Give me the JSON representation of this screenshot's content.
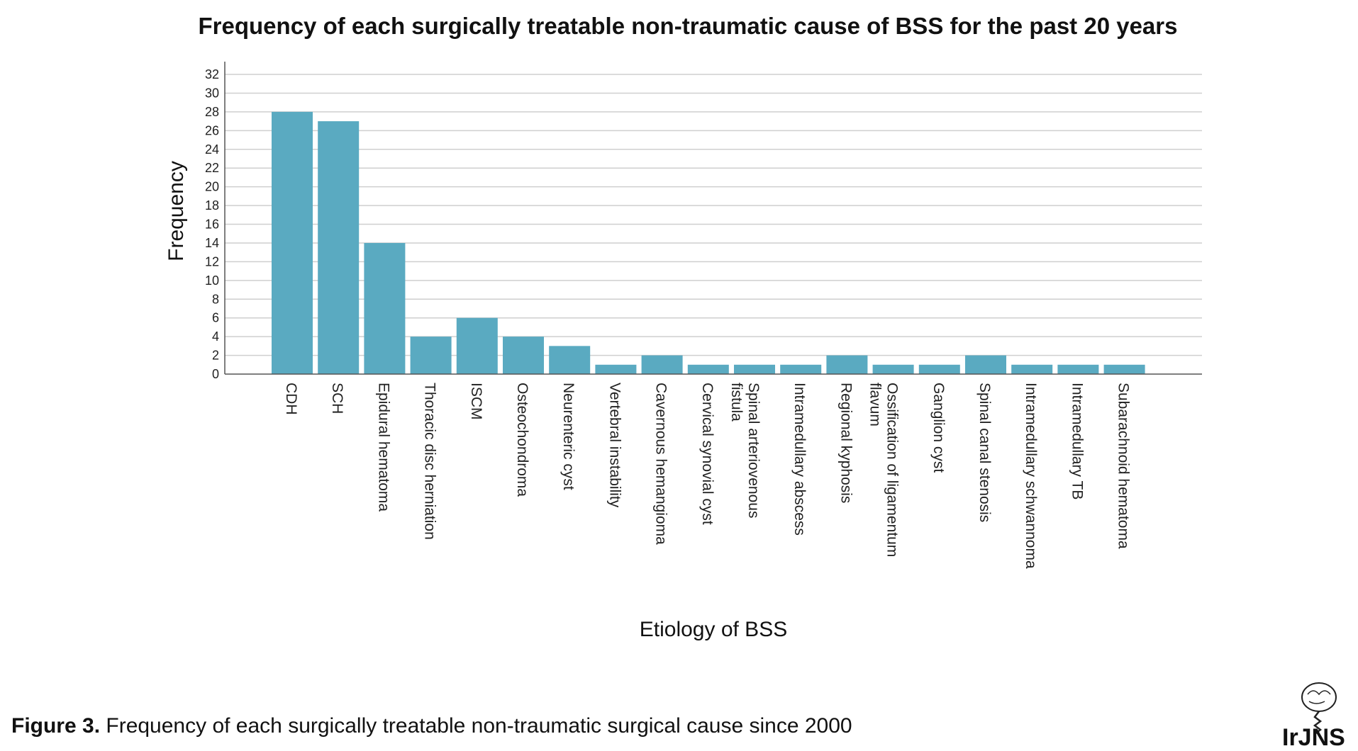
{
  "caption": {
    "label": "Figure 3.",
    "text": "Frequency of each surgically treatable non-traumatic surgical cause since 2000"
  },
  "logo": {
    "text": "IrJNS",
    "icon": "brain-spine-logo-icon"
  },
  "colors": {
    "bar": "#5aaac1",
    "grid": "#cfcfcf",
    "axis": "#555555"
  },
  "chart_data": {
    "type": "bar",
    "title": "Frequency of each surgically treatable non-traumatic cause of BSS for the past 20 years",
    "xlabel": "Etiology of BSS",
    "ylabel": "Frequency",
    "ylim": [
      0,
      32
    ],
    "yticks": [
      0,
      2,
      4,
      6,
      8,
      10,
      12,
      14,
      16,
      18,
      20,
      22,
      24,
      26,
      28,
      30,
      32
    ],
    "grid": true,
    "categories": [
      "CDH",
      "SCH",
      "Epidural hematoma",
      "Thoracic disc herniation",
      "ISCM",
      "Osteochondroma",
      "Neurenteric cyst",
      "Vertebral instability",
      "Cavernous hemangioma",
      "Cervical synovial cyst",
      "Spinal arteriovenous fistula",
      "Intramedullary abscess",
      "Regional kyphosis",
      "Ossification of ligamentum flavum",
      "Ganglion cyst",
      "Spinal canal stenosis",
      "Intramedullary schwannoma",
      "Intramedullary TB",
      "Subarachnoid hematoma"
    ],
    "values": [
      28,
      27,
      14,
      4,
      6,
      4,
      3,
      1,
      2,
      1,
      1,
      1,
      2,
      1,
      1,
      2,
      1,
      1,
      1
    ]
  }
}
